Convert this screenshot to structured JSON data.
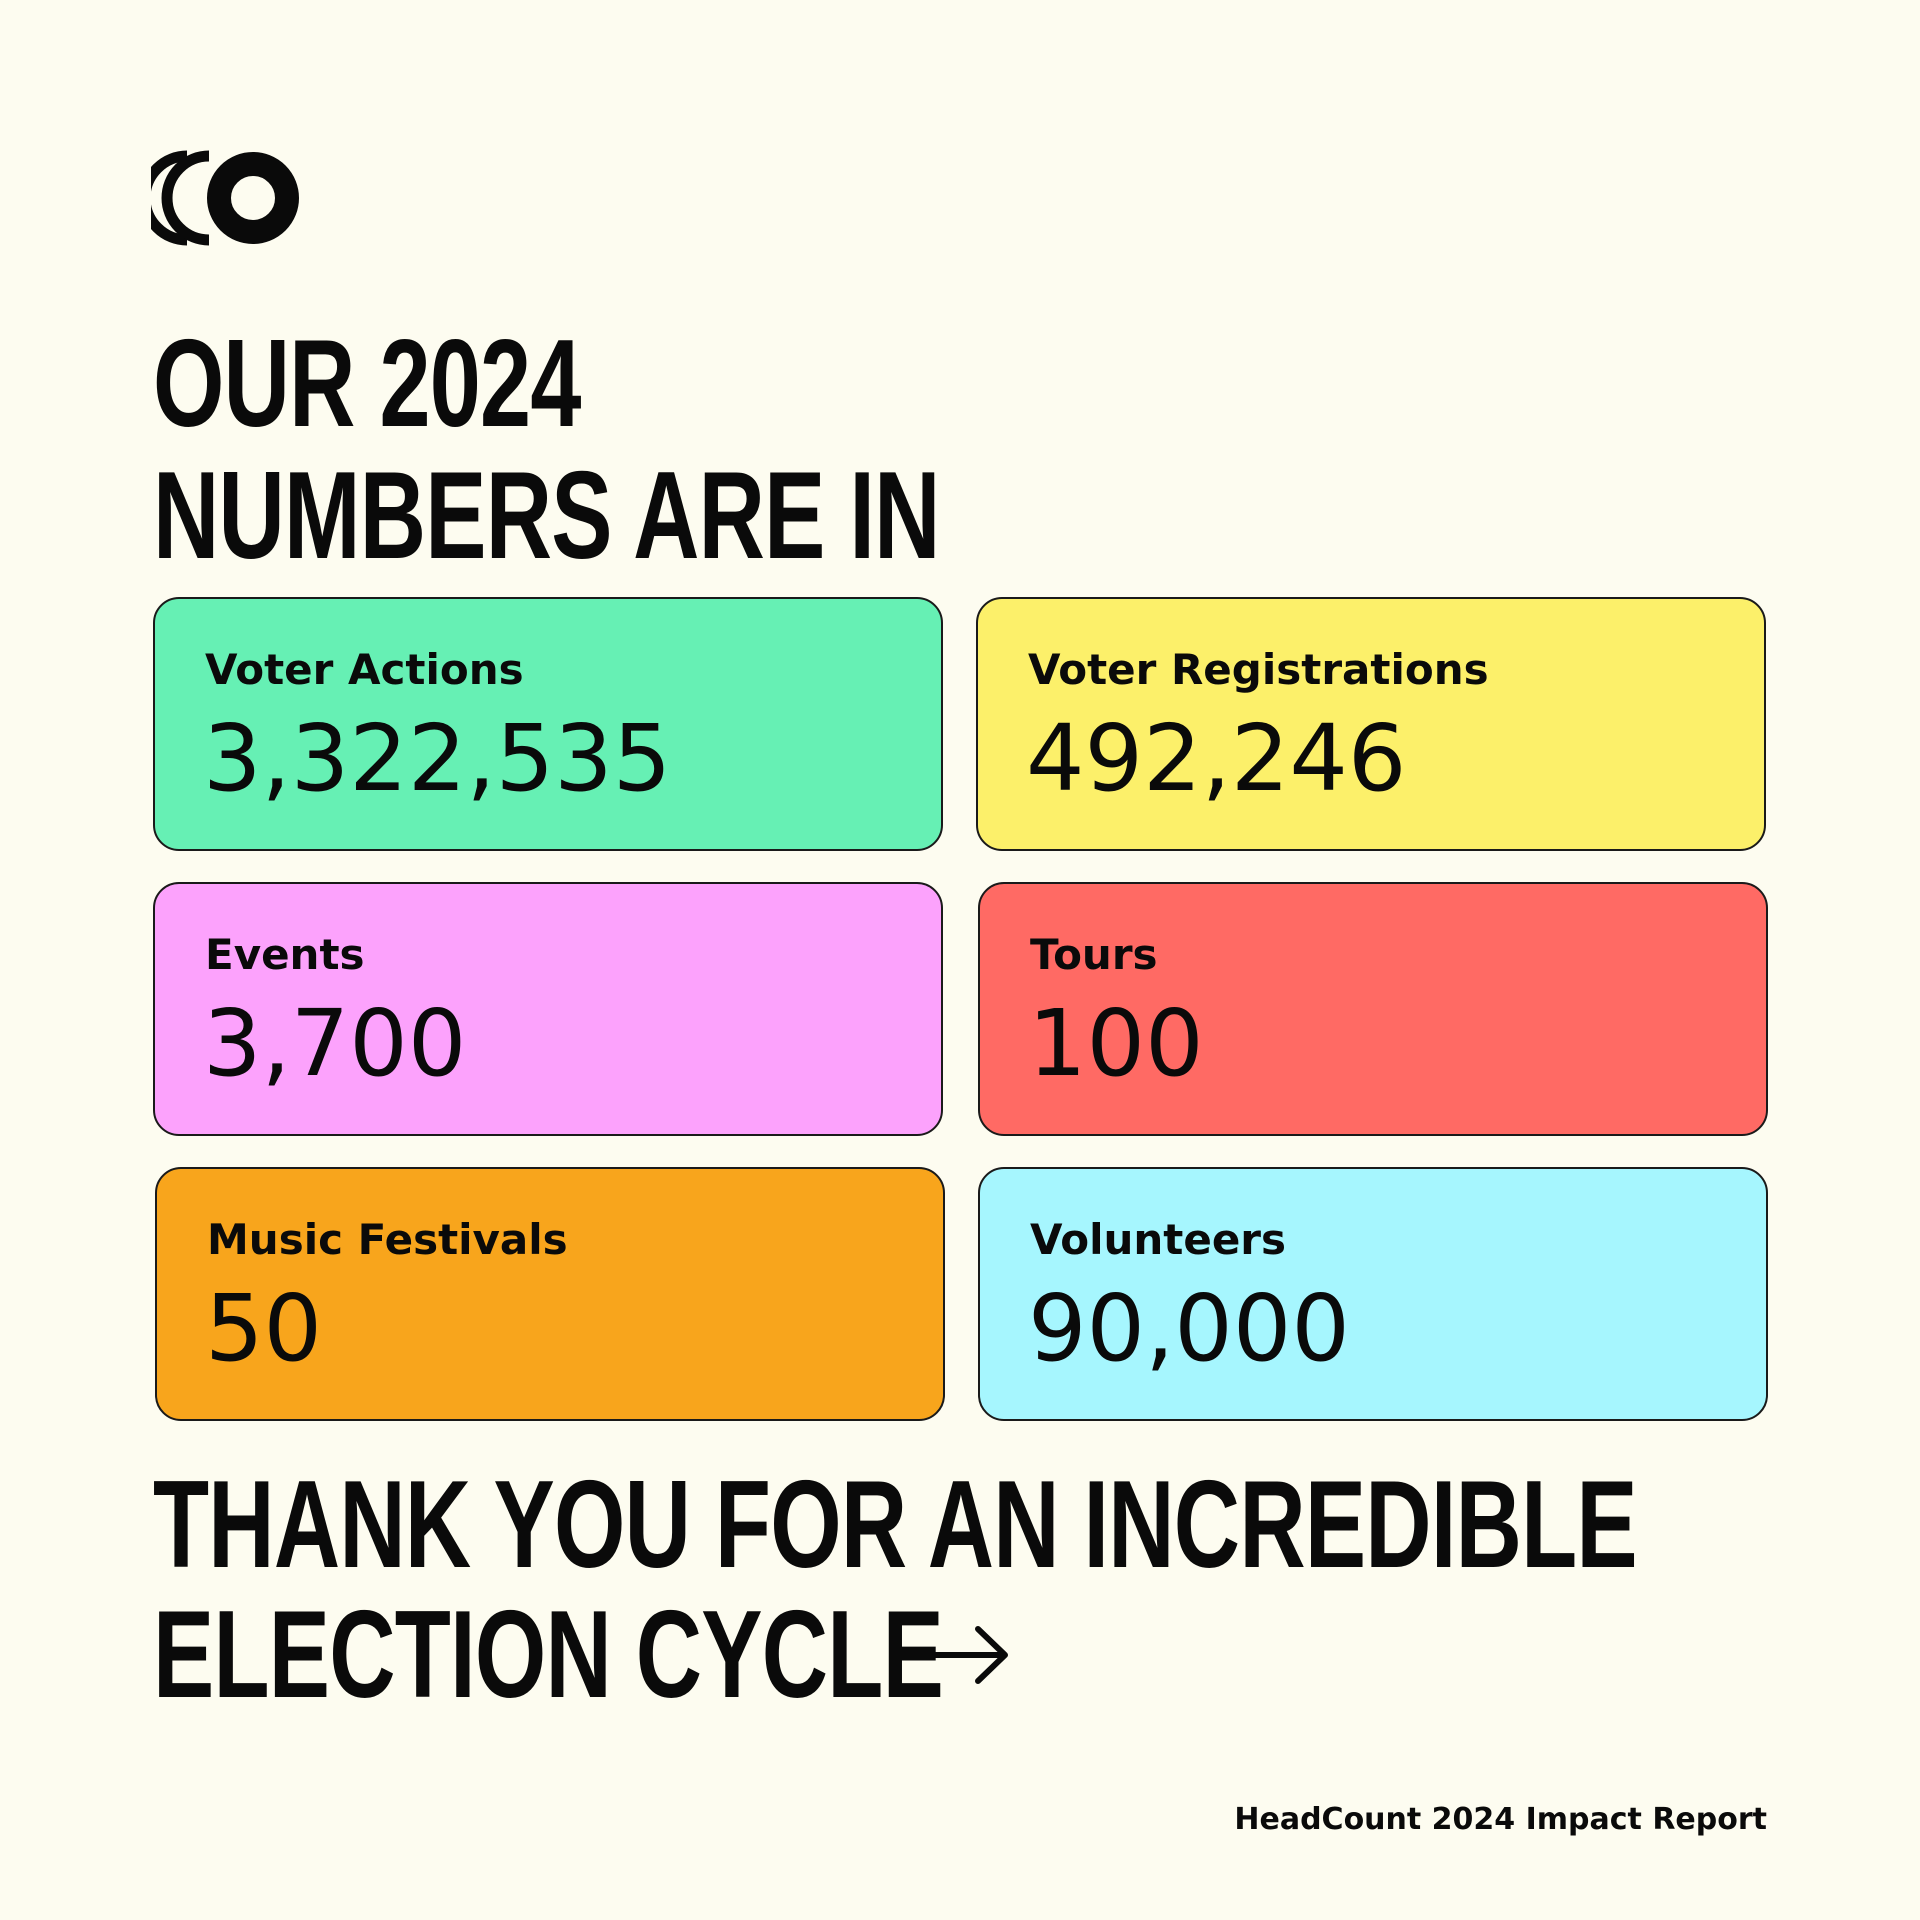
{
  "brand": {
    "logo_icon": "headcount-logo-icon",
    "background": "#FDFCF0"
  },
  "headline": {
    "line1": "OUR 2024",
    "line2": "NUMBERS ARE IN"
  },
  "stats": [
    {
      "label": "Voter Actions",
      "value": "3,322,535",
      "color": "#66F0B4"
    },
    {
      "label": "Voter Registrations",
      "value": "492,246",
      "color": "#FCF06A"
    },
    {
      "label": "Events",
      "value": "3,700",
      "color": "#FCA2FC"
    },
    {
      "label": "Tours",
      "value": "100",
      "color": "#FF6A64"
    },
    {
      "label": "Music Festivals",
      "value": "50",
      "color": "#F8A51C"
    },
    {
      "label": "Volunteers",
      "value": "90,000",
      "color": "#A6F6FE"
    }
  ],
  "closing": {
    "line1": "THANK YOU FOR AN INCREDIBLE",
    "line2": "ELECTION CYCLE",
    "arrow_icon": "arrow-right-icon"
  },
  "footer": {
    "text": "HeadCount 2024 Impact Report"
  }
}
